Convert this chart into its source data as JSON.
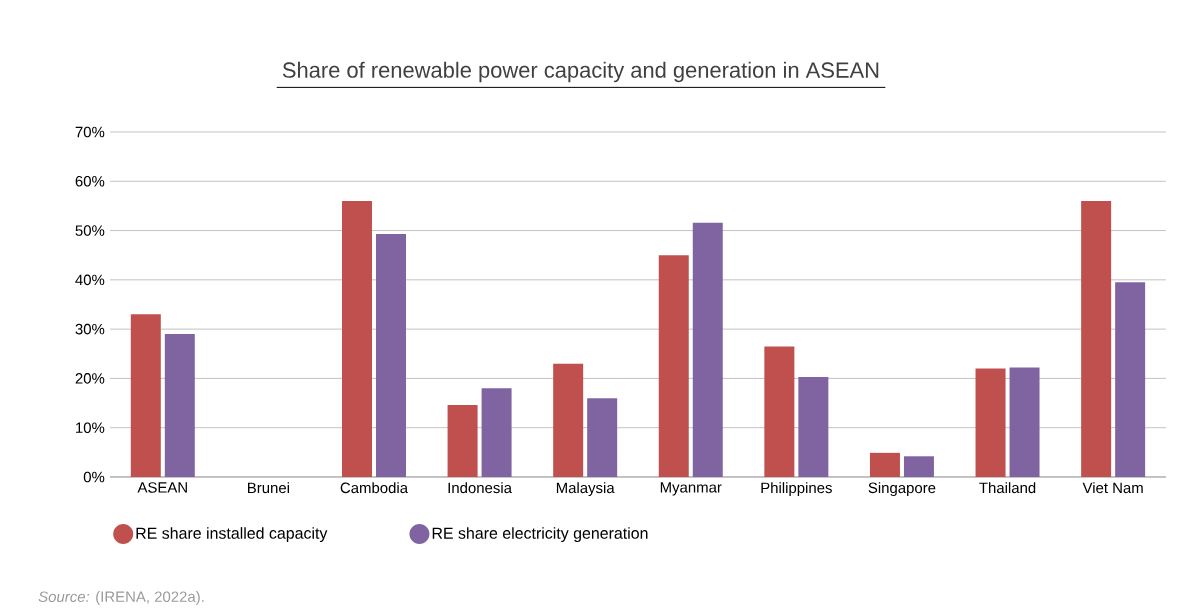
{
  "chart_data": {
    "type": "bar",
    "title": "Share of renewable power capacity and generation in ASEAN",
    "categories": [
      "ASEAN",
      "Brunei",
      "Cambodia",
      "Indonesia",
      "Malaysia",
      "Myanmar",
      "Philippines",
      "Singapore",
      "Thailand",
      "Viet Nam"
    ],
    "series": [
      {
        "name": "RE share installed capacity",
        "color": "#c0504d",
        "values": [
          33,
          0,
          56,
          14.6,
          23,
          45,
          26.5,
          4.9,
          22,
          56
        ]
      },
      {
        "name": "RE share electricity generation",
        "color": "#8064a2",
        "values": [
          29,
          0,
          49.3,
          18,
          16,
          51.6,
          20.3,
          4.2,
          22.2,
          39.5
        ]
      }
    ],
    "ylim": [
      0,
      70
    ],
    "yticks": [
      {
        "value": 0,
        "label": "0%"
      },
      {
        "value": 10,
        "label": "10%"
      },
      {
        "value": 20,
        "label": "20%"
      },
      {
        "value": 30,
        "label": "30%"
      },
      {
        "value": 40,
        "label": "40%"
      },
      {
        "value": 50,
        "label": "50%"
      },
      {
        "value": 60,
        "label": "60%"
      },
      {
        "value": 70,
        "label": "70%"
      }
    ],
    "grid": "y",
    "legend": "bottom left",
    "annotations": [
      "*Source:* (IRENA, 2022a)."
    ]
  }
}
